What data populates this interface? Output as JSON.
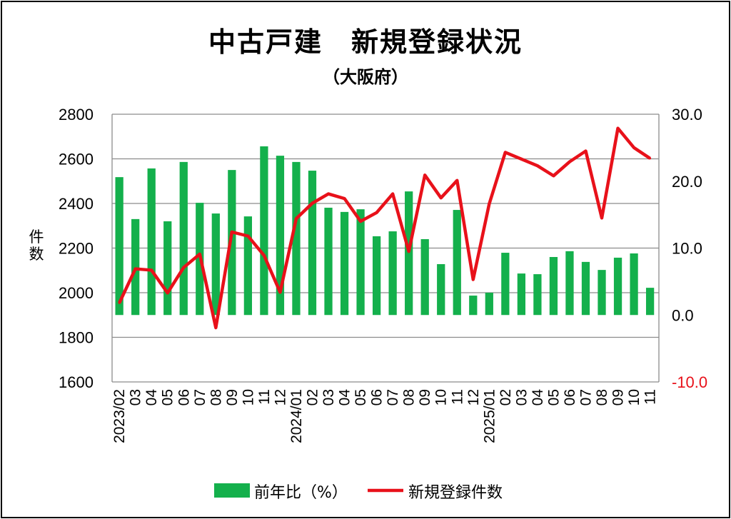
{
  "chart_data": {
    "type": "bar+line",
    "title": "中古戸建　新規登録状況",
    "subtitle": "（大阪府）",
    "ylabel": "件数",
    "categories": [
      "2023/02",
      "03",
      "04",
      "05",
      "06",
      "07",
      "08",
      "09",
      "10",
      "11",
      "12",
      "2024/01",
      "02",
      "03",
      "04",
      "05",
      "06",
      "07",
      "08",
      "09",
      "10",
      "11",
      "12",
      "2025/01",
      "02",
      "03",
      "04",
      "05",
      "06",
      "07",
      "08",
      "09",
      "10",
      "11"
    ],
    "left_axis": {
      "range": [
        1600,
        2800
      ],
      "ticks": [
        "1600",
        "1800",
        "2000",
        "2200",
        "2400",
        "2600",
        "2800"
      ]
    },
    "right_axis": {
      "range": [
        -10,
        30
      ],
      "ticks": [
        "-10.0",
        "0.0",
        "10.0",
        "20.0",
        "30.0"
      ]
    },
    "grid": true,
    "legend_position": "bottom",
    "series": [
      {
        "name": "前年比（%）",
        "type": "bar",
        "axis": "left",
        "color": "#14b04c",
        "baseline": 1900,
        "values": [
          2518,
          2330,
          2557,
          2320,
          2586,
          2403,
          2355,
          2550,
          2342,
          2656,
          2614,
          2586,
          2547,
          2381,
          2362,
          2374,
          2253,
          2275,
          2454,
          2240,
          2128,
          2371,
          1987,
          2000,
          2179,
          2086,
          2083,
          2160,
          2186,
          2138,
          2102,
          2157,
          2176,
          2022
        ]
      },
      {
        "name": "新規登録件数",
        "type": "line",
        "axis": "right",
        "color": "#e8111a",
        "values": [
          1.8,
          6.9,
          6.7,
          3.3,
          7.1,
          9.1,
          -1.9,
          12.4,
          11.8,
          8.9,
          3.4,
          14.4,
          16.7,
          18.1,
          17.4,
          14.0,
          15.3,
          18.1,
          9.5,
          20.9,
          17.5,
          20.1,
          5.3,
          16.6,
          24.3,
          23.3,
          22.3,
          20.8,
          22.9,
          24.5,
          14.5,
          27.9,
          25.0,
          23.4
        ]
      }
    ],
    "negative_tick_color": "#e8111a"
  }
}
